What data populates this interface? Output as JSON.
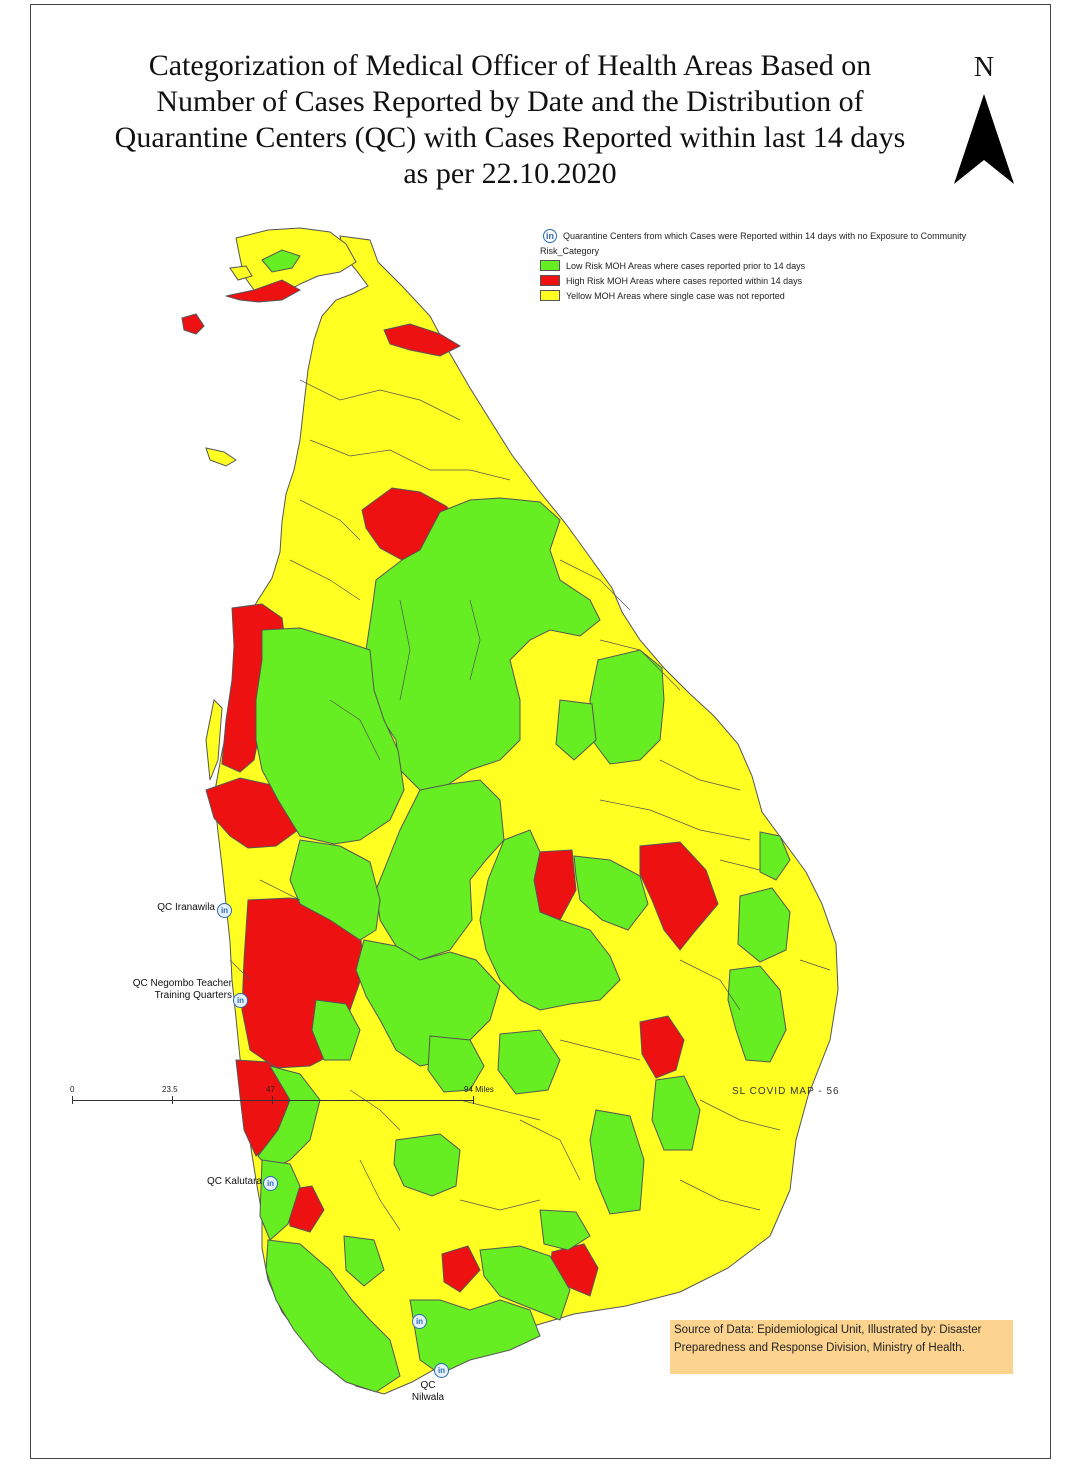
{
  "title": {
    "line1": "Categorization of Medical Officer of Health Areas Based on",
    "line2": "Number of Cases Reported by Date and the Distribution of",
    "line3": "Quarantine Centers (QC) with Cases Reported within last 14 days",
    "line4": "as per 22.10.2020"
  },
  "north_label": "N",
  "legend": {
    "qc_entry": "Quarantine Centers from which Cases were Reported within 14 days with no Exposure to Community",
    "heading": "Risk_Category",
    "items": [
      {
        "label": "Low Risk MOH Areas where cases reported prior to 14 days",
        "color": "#66ee22"
      },
      {
        "label": "High Risk MOH Areas where cases reported within 14 days",
        "color": "#ee1111"
      },
      {
        "label": "Yellow MOH Areas where single case was not reported",
        "color": "#ffff22"
      }
    ]
  },
  "quarantine_centers": [
    {
      "name": "QC Iranawila"
    },
    {
      "name": "QC Negombo Teacher Training Quarters"
    },
    {
      "name": "QC Kalutara"
    },
    {
      "name": "QC Nilwala"
    }
  ],
  "source": "Source of Data: Epidemiological Unit, Illustrated by: Disaster Preparedness and Response Division, Ministry of Health.",
  "scale": {
    "ticks": [
      "0",
      "23.5",
      "47",
      "94 Miles"
    ]
  },
  "map_number": "SL COVID MAP - 56",
  "colors": {
    "low": "#66ee22",
    "high": "#ee1111",
    "yellow": "#ffff22",
    "border": "#555555"
  }
}
